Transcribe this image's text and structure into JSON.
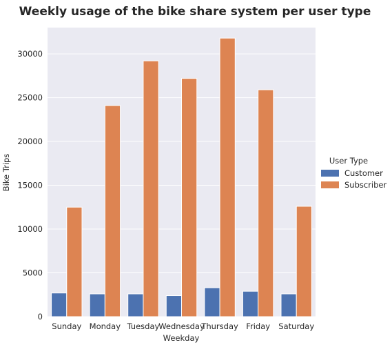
{
  "chart_data": {
    "type": "bar",
    "title": "Weekly usage of the bike share system per user type",
    "xlabel": "Weekday",
    "ylabel": "Bike Trips",
    "categories": [
      "Sunday",
      "Monday",
      "Tuesday",
      "Wednesday",
      "Thursday",
      "Friday",
      "Saturday"
    ],
    "series": [
      {
        "name": "Customer",
        "color": "#4c72b0",
        "values": [
          2700,
          2600,
          2600,
          2400,
          3300,
          2900,
          2600
        ]
      },
      {
        "name": "Subscriber",
        "color": "#dd8452",
        "values": [
          12500,
          24100,
          29200,
          27200,
          31800,
          25900,
          12600
        ]
      }
    ],
    "ylim": [
      0,
      33000
    ],
    "yticks": [
      0,
      5000,
      10000,
      15000,
      20000,
      25000,
      30000
    ],
    "grid": true,
    "legend": {
      "title": "User Type",
      "position": "right"
    },
    "background": "#eaeaf2"
  }
}
